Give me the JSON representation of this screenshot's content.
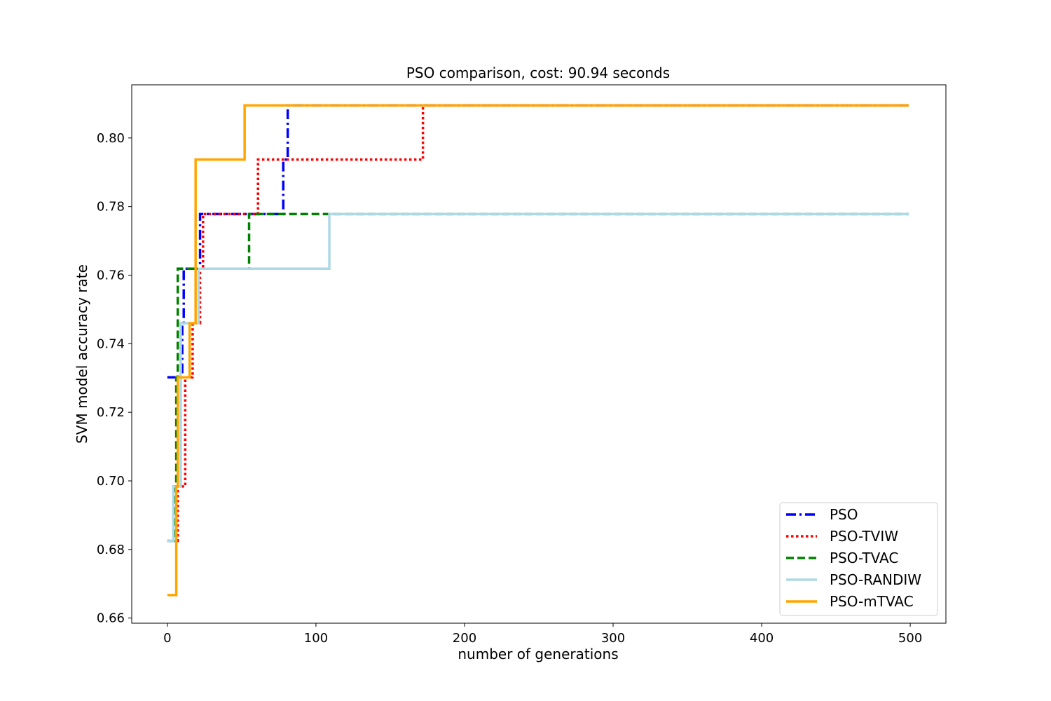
{
  "chart_data": {
    "type": "line",
    "title": "PSO comparison, cost: 90.94 seconds",
    "xlabel": "number of generations",
    "ylabel": "SVM model accuracy rate",
    "xlim": [
      -24,
      524
    ],
    "ylim": [
      0.6585,
      0.8155
    ],
    "xticks": [
      0,
      100,
      200,
      300,
      400,
      500
    ],
    "yticks": [
      0.66,
      0.68,
      0.7,
      0.72,
      0.74,
      0.76,
      0.78,
      0.8
    ],
    "ytick_labels": [
      "0.66",
      "0.68",
      "0.70",
      "0.72",
      "0.74",
      "0.76",
      "0.78",
      "0.80"
    ],
    "grid": false,
    "legend_position": "bottom-right",
    "series": [
      {
        "name": "PSO",
        "color": "#0000ff",
        "style": "dashdot",
        "x": [
          0,
          10,
          10,
          11,
          11,
          22,
          22,
          78,
          78,
          81,
          81,
          499
        ],
        "y": [
          0.7302,
          0.7302,
          0.746,
          0.746,
          0.7619,
          0.7619,
          0.7778,
          0.7778,
          0.7937,
          0.7937,
          0.8095,
          0.8095
        ]
      },
      {
        "name": "PSO-TVIW",
        "color": "#ff0000",
        "style": "dotted",
        "x": [
          0,
          7,
          7,
          12,
          12,
          17,
          17,
          22,
          22,
          24,
          24,
          61,
          61,
          172,
          172,
          499
        ],
        "y": [
          0.6825,
          0.6825,
          0.6984,
          0.6984,
          0.7302,
          0.7302,
          0.746,
          0.746,
          0.7619,
          0.7619,
          0.7778,
          0.7778,
          0.7937,
          0.7937,
          0.8095,
          0.8095
        ]
      },
      {
        "name": "PSO-TVAC",
        "color": "#008000",
        "style": "dashed",
        "x": [
          0,
          5,
          5,
          6,
          6,
          7,
          7,
          55,
          55,
          499
        ],
        "y": [
          0.6825,
          0.6825,
          0.6984,
          0.6984,
          0.7302,
          0.7302,
          0.7619,
          0.7619,
          0.7778,
          0.7778
        ]
      },
      {
        "name": "PSO-RANDIW",
        "color": "#add8e6",
        "style": "solid",
        "x": [
          0,
          4,
          4,
          9,
          9,
          21,
          21,
          109,
          109,
          499
        ],
        "y": [
          0.6825,
          0.6825,
          0.6984,
          0.6984,
          0.746,
          0.746,
          0.7619,
          0.7619,
          0.7778,
          0.7778
        ]
      },
      {
        "name": "PSO-mTVAC",
        "color": "#ffa500",
        "style": "solid",
        "x": [
          0,
          6,
          6,
          7,
          7,
          15,
          15,
          19,
          19,
          52,
          52,
          499
        ],
        "y": [
          0.6667,
          0.6667,
          0.6984,
          0.6984,
          0.7302,
          0.7302,
          0.746,
          0.746,
          0.7937,
          0.7937,
          0.8095,
          0.8095
        ]
      }
    ]
  }
}
